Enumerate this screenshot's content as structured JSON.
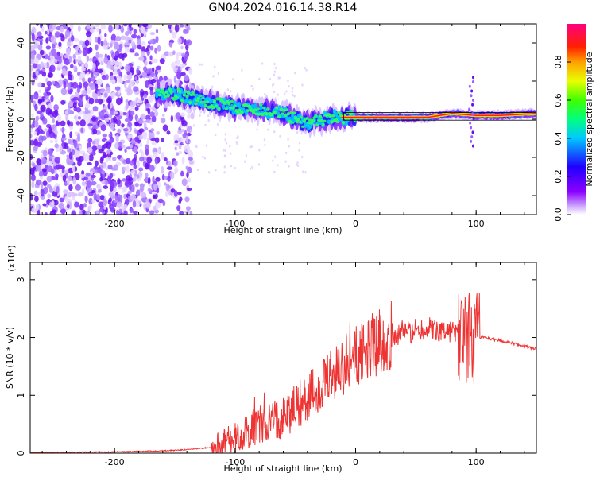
{
  "title": "GN04.2024.016.14.38.R14",
  "chart_data": [
    {
      "type": "heatmap",
      "panel": "spectrogram",
      "xlabel": "Height of straight line (km)",
      "ylabel": "Frequency (Hz)",
      "xlim": [
        -270,
        150
      ],
      "ylim": [
        -50,
        50
      ],
      "x_ticks": [
        -200,
        -100,
        0,
        100
      ],
      "y_ticks": [
        -40,
        -20,
        0,
        20,
        40
      ],
      "colorbar": {
        "label": "Normalized spectral amplitude",
        "range": [
          0,
          1
        ],
        "ticks": [
          "0.0",
          "0.2",
          "0.4",
          "0.6",
          "0.8"
        ],
        "colors": [
          "#ffffff",
          "#8c00ff",
          "#0000ff",
          "#00ffff",
          "#00ff00",
          "#ffff00",
          "#ff0000",
          "#ff0080"
        ]
      },
      "ridge": {
        "description_points_x": [
          -160,
          -140,
          -120,
          -100,
          -80,
          -60,
          -40,
          -20,
          0,
          20,
          40,
          60,
          80,
          100,
          120,
          150
        ],
        "description_points_freq": [
          14,
          12,
          9,
          6,
          5,
          3,
          -2,
          1,
          1,
          1,
          1,
          1,
          3,
          2,
          2,
          3
        ]
      }
    },
    {
      "type": "line",
      "panel": "snr",
      "xlabel": "Height of straight line (km)",
      "ylabel": "SNR (10 * v/v)",
      "y_multiplier": "(x10⁴)",
      "xlim": [
        -270,
        150
      ],
      "ylim": [
        0,
        3.3
      ],
      "x_ticks": [
        -200,
        -100,
        0,
        100
      ],
      "y_ticks": [
        0,
        1,
        2,
        3
      ],
      "color": "#ee3333",
      "envelope_x": [
        -270,
        -200,
        -160,
        -140,
        -120,
        -100,
        -90,
        -80,
        -70,
        -60,
        -50,
        -40,
        -30,
        -20,
        -10,
        0,
        10,
        20,
        30,
        40,
        60,
        80,
        90,
        100,
        105,
        110,
        120,
        130,
        140,
        150
      ],
      "envelope_y": [
        0.01,
        0.02,
        0.04,
        0.06,
        0.1,
        0.25,
        0.35,
        0.5,
        0.55,
        0.65,
        0.8,
        0.95,
        1.1,
        1.3,
        1.5,
        1.65,
        1.8,
        1.95,
        2.05,
        2.1,
        2.15,
        2.1,
        2.05,
        1.95,
        2.0,
        1.98,
        1.95,
        1.9,
        1.85,
        1.8
      ]
    }
  ]
}
